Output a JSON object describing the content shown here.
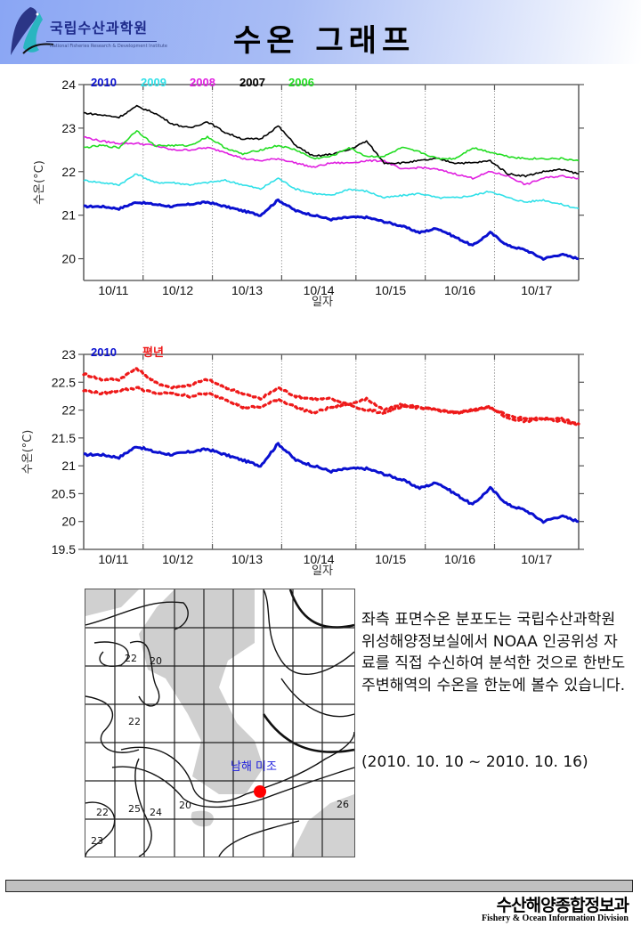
{
  "header": {
    "org_name_kr": "국립수산과학원",
    "org_name_en": "National Fisheries Research & Development Institute",
    "page_title": "수온 그래프"
  },
  "chart_data": [
    {
      "type": "line",
      "title": "",
      "xlabel": "일자",
      "ylabel": "수온(°C)",
      "ylim": [
        19.5,
        24
      ],
      "yticks": [
        20,
        21,
        22,
        23,
        24
      ],
      "xlim": [
        0,
        7
      ],
      "categories": [
        "10/11",
        "10/12",
        "10/13",
        "10/14",
        "10/15",
        "10/16",
        "10/17"
      ],
      "grid": "vertical-dotted",
      "legend": "top-left",
      "x": [
        0,
        0.25,
        0.5,
        0.75,
        1,
        1.25,
        1.5,
        1.75,
        2,
        2.25,
        2.5,
        2.75,
        3,
        3.25,
        3.5,
        3.75,
        4,
        4.25,
        4.5,
        4.75,
        5,
        5.25,
        5.5,
        5.75,
        6,
        6.25,
        6.5,
        6.75,
        7
      ],
      "series": [
        {
          "name": "2010",
          "color": "#0a10d0",
          "values": [
            21.2,
            21.2,
            21.15,
            21.3,
            21.25,
            21.2,
            21.25,
            21.3,
            21.2,
            21.1,
            21.0,
            21.35,
            21.1,
            21.0,
            20.9,
            20.95,
            20.95,
            20.85,
            20.75,
            20.6,
            20.7,
            20.5,
            20.3,
            20.6,
            20.3,
            20.2,
            20.0,
            20.1,
            20.0
          ]
        },
        {
          "name": "2009",
          "color": "#30e0e8",
          "values": [
            21.8,
            21.75,
            21.7,
            21.95,
            21.75,
            21.75,
            21.7,
            21.75,
            21.8,
            21.7,
            21.6,
            21.85,
            21.6,
            21.5,
            21.45,
            21.6,
            21.55,
            21.4,
            21.45,
            21.5,
            21.4,
            21.4,
            21.45,
            21.55,
            21.4,
            21.3,
            21.35,
            21.25,
            21.15
          ]
        },
        {
          "name": "2008",
          "color": "#e020e0",
          "values": [
            22.8,
            22.7,
            22.65,
            22.65,
            22.6,
            22.5,
            22.5,
            22.55,
            22.45,
            22.3,
            22.25,
            22.3,
            22.2,
            22.1,
            22.2,
            22.2,
            22.25,
            22.25,
            22.05,
            22.1,
            22.05,
            21.95,
            21.85,
            22.0,
            21.9,
            21.7,
            21.85,
            21.9,
            21.85
          ]
        },
        {
          "name": "2007",
          "color": "#000000",
          "values": [
            23.35,
            23.3,
            23.25,
            23.5,
            23.35,
            23.1,
            23.0,
            23.15,
            22.9,
            22.75,
            22.75,
            23.05,
            22.6,
            22.35,
            22.4,
            22.5,
            22.7,
            22.2,
            22.2,
            22.25,
            22.3,
            22.2,
            22.2,
            22.25,
            21.95,
            21.9,
            22.0,
            22.05,
            21.95
          ]
        },
        {
          "name": "2006",
          "color": "#22dd22",
          "values": [
            22.55,
            22.6,
            22.55,
            22.95,
            22.6,
            22.6,
            22.6,
            22.8,
            22.55,
            22.4,
            22.5,
            22.6,
            22.5,
            22.3,
            22.35,
            22.55,
            22.35,
            22.35,
            22.55,
            22.45,
            22.3,
            22.3,
            22.55,
            22.45,
            22.35,
            22.3,
            22.3,
            22.3,
            22.25
          ]
        }
      ]
    },
    {
      "type": "line",
      "title": "",
      "xlabel": "일자",
      "ylabel": "수온(°C)",
      "ylim": [
        19.5,
        23
      ],
      "yticks": [
        19.5,
        20,
        20.5,
        21,
        21.5,
        22,
        22.5,
        23
      ],
      "xlim": [
        0,
        7
      ],
      "categories": [
        "10/11",
        "10/12",
        "10/13",
        "10/14",
        "10/15",
        "10/16",
        "10/17"
      ],
      "grid": "vertical-dotted",
      "legend": "top-left",
      "x": [
        0,
        0.25,
        0.5,
        0.75,
        1,
        1.25,
        1.5,
        1.75,
        2,
        2.25,
        2.5,
        2.75,
        3,
        3.25,
        3.5,
        3.75,
        4,
        4.25,
        4.5,
        4.75,
        5,
        5.25,
        5.5,
        5.75,
        6,
        6.25,
        6.5,
        6.75,
        7
      ],
      "series": [
        {
          "name": "2010",
          "color": "#0a10d0",
          "style": "solid",
          "values": [
            21.2,
            21.2,
            21.15,
            21.35,
            21.25,
            21.2,
            21.25,
            21.3,
            21.2,
            21.1,
            21.0,
            21.4,
            21.1,
            21.0,
            20.9,
            20.95,
            20.95,
            20.85,
            20.75,
            20.6,
            20.7,
            20.5,
            20.3,
            20.6,
            20.3,
            20.2,
            20.0,
            20.1,
            20.0
          ]
        },
        {
          "name": "평년 (upper)",
          "color": "#ee1a1a",
          "style": "dotted",
          "values": [
            22.65,
            22.55,
            22.55,
            22.75,
            22.5,
            22.4,
            22.45,
            22.55,
            22.4,
            22.3,
            22.2,
            22.4,
            22.25,
            22.2,
            22.2,
            22.1,
            22.2,
            22.0,
            22.1,
            22.05,
            22.0,
            21.95,
            22.0,
            22.05,
            21.9,
            21.85,
            21.85,
            21.85,
            21.75
          ]
        },
        {
          "name": "평년 (lower)",
          "color": "#ee1a1a",
          "style": "dotted",
          "values": [
            22.35,
            22.3,
            22.35,
            22.4,
            22.3,
            22.3,
            22.25,
            22.3,
            22.2,
            22.05,
            22.05,
            22.2,
            22.05,
            21.95,
            22.05,
            22.1,
            22.0,
            21.95,
            22.05,
            22.05,
            22.0,
            21.95,
            22.0,
            22.05,
            21.85,
            21.8,
            21.85,
            21.8,
            21.75
          ]
        }
      ]
    }
  ],
  "charts": {
    "top": {
      "legend": [
        "2010",
        "2009",
        "2008",
        "2007",
        "2006"
      ],
      "xlabel": "일자",
      "ylabel": "수온(°C)"
    },
    "bottom": {
      "legend": [
        "2010",
        "평년"
      ],
      "xlabel": "일자",
      "ylabel": "수온(°C)"
    }
  },
  "map": {
    "station_label": "남해 미조",
    "station_color": "#ff0000",
    "contour_labels": [
      "22",
      "20",
      "22",
      "22",
      "25",
      "24",
      "20",
      "23",
      "26"
    ]
  },
  "description": {
    "text": "좌측 표면수온 분포도는 국립수산과학원 위성해양정보실에서 NOAA 인공위성 자료를 직접 수신하여 분석한 것으로  한반도 주변해역의 수온을 한눈에 볼수 있습니다.",
    "period": "(2010. 10. 10 ~ 2010. 10. 16)"
  },
  "footer": {
    "division_kr": "수산해양종합정보과",
    "division_en": "Fishery & Ocean Information Division"
  }
}
